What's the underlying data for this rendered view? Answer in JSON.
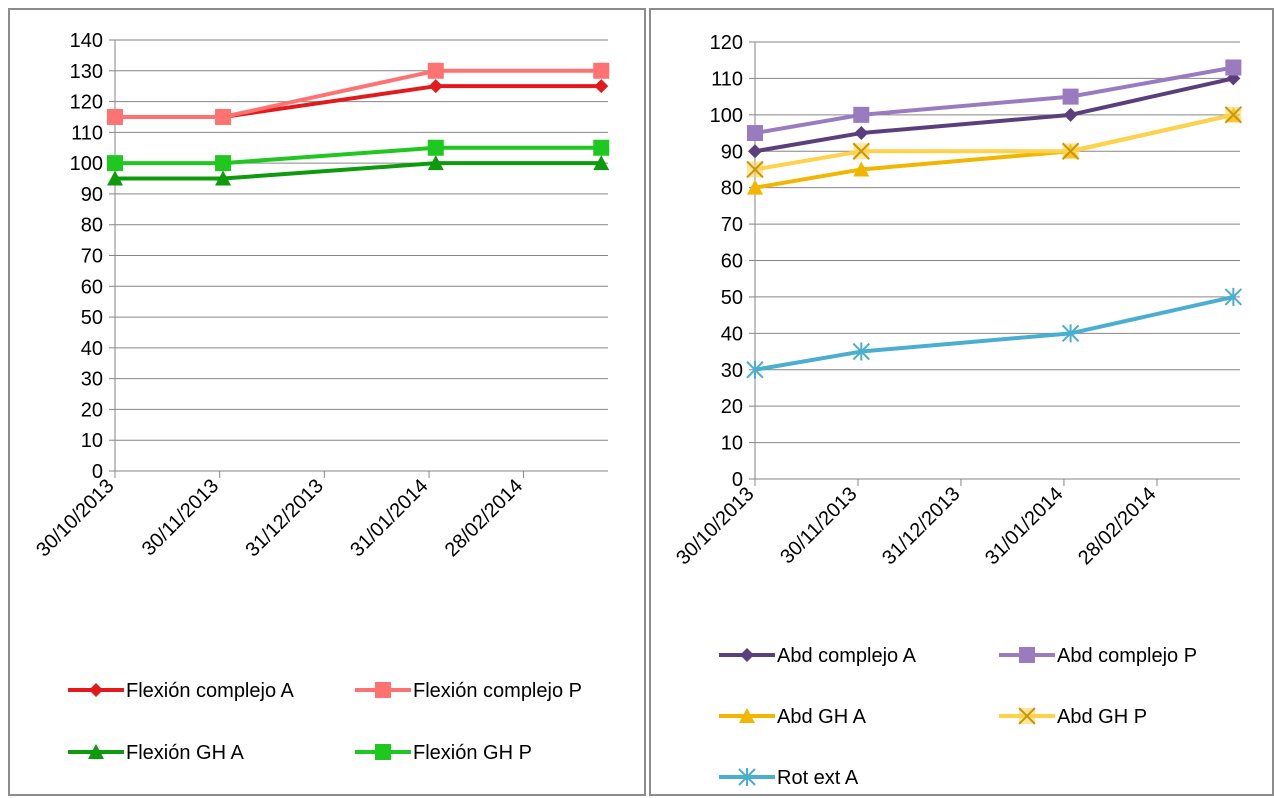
{
  "chart_data": [
    {
      "type": "line",
      "title": "",
      "xlabel": "",
      "ylabel": "",
      "x_axis": "date",
      "x_tick_labels": [
        "30/10/2013",
        "30/11/2013",
        "31/12/2013",
        "31/01/2014",
        "28/02/2014"
      ],
      "x_range": [
        "2013-10-30",
        "2014-03-25"
      ],
      "ylim": [
        0,
        140
      ],
      "y_ticks": [
        0,
        10,
        20,
        30,
        40,
        50,
        60,
        70,
        80,
        90,
        100,
        110,
        120,
        130,
        140
      ],
      "grid": "horizontal",
      "legend_position": "bottom",
      "x": [
        "2013-10-30",
        "2013-12-01",
        "2014-02-02",
        "2014-03-23"
      ],
      "series": [
        {
          "name": "Flexión complejo A",
          "color": "#e31a1c",
          "marker": "diamond",
          "values": [
            115,
            115,
            125,
            125
          ]
        },
        {
          "name": "Flexión complejo P",
          "color": "#ff7272",
          "marker": "square",
          "values": [
            115,
            115,
            130,
            130
          ]
        },
        {
          "name": "Flexión GH A",
          "color": "#0d9a0d",
          "marker": "triangle",
          "values": [
            95,
            95,
            100,
            100
          ]
        },
        {
          "name": "Flexión GH P",
          "color": "#1ec81e",
          "marker": "square",
          "values": [
            100,
            100,
            105,
            105
          ]
        }
      ]
    },
    {
      "type": "line",
      "title": "",
      "xlabel": "",
      "ylabel": "",
      "x_axis": "date",
      "x_tick_labels": [
        "30/10/2013",
        "30/11/2013",
        "31/12/2013",
        "31/01/2014",
        "28/02/2014"
      ],
      "x_range": [
        "2013-10-30",
        "2014-03-25"
      ],
      "ylim": [
        0,
        120
      ],
      "y_ticks": [
        0,
        10,
        20,
        30,
        40,
        50,
        60,
        70,
        80,
        90,
        100,
        110,
        120
      ],
      "grid": "horizontal",
      "legend_position": "bottom",
      "x": [
        "2013-10-30",
        "2013-12-01",
        "2014-02-02",
        "2014-03-23"
      ],
      "series": [
        {
          "name": "Abd complejo A",
          "color": "#5b3f7c",
          "marker": "diamond",
          "values": [
            90,
            95,
            100,
            110
          ]
        },
        {
          "name": "Abd complejo P",
          "color": "#9a7bbf",
          "marker": "square",
          "values": [
            95,
            100,
            105,
            113
          ]
        },
        {
          "name": "Abd GH A",
          "color": "#f2b500",
          "marker": "triangle",
          "values": [
            80,
            85,
            90,
            100
          ]
        },
        {
          "name": "Abd GH P",
          "color": "#ffd24d",
          "marker": "x",
          "values": [
            85,
            90,
            90,
            100
          ]
        },
        {
          "name": "Rot ext A",
          "color": "#4aaed0",
          "marker": "star",
          "values": [
            30,
            35,
            40,
            50
          ]
        }
      ]
    }
  ]
}
